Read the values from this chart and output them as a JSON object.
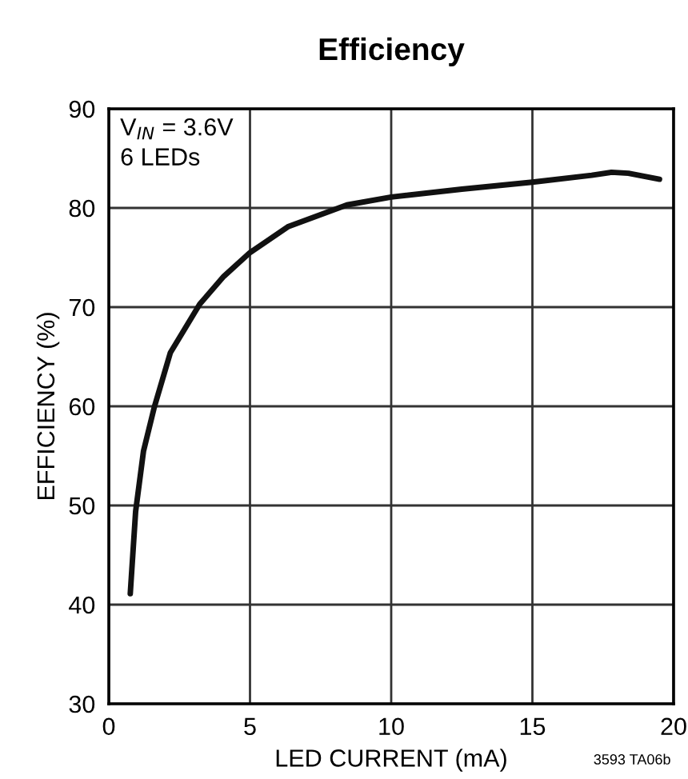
{
  "chart_data": {
    "type": "line",
    "title": "Efficiency",
    "xlabel": "LED CURRENT (mA)",
    "ylabel": "EFFICIENCY (%)",
    "series": [
      {
        "color": "#111111",
        "x": [
          0.76,
          0.95,
          1.23,
          1.61,
          2.18,
          3.22,
          4.07,
          5.0,
          6.34,
          8.43,
          10,
          12.5,
          15,
          17.1,
          17.8,
          18.4,
          19.5
        ],
        "values": [
          41.1,
          49.4,
          55.5,
          59.9,
          65.4,
          70.3,
          73.1,
          75.5,
          78.1,
          80.3,
          81.1,
          81.9,
          82.6,
          83.3,
          83.6,
          83.5,
          82.9
        ]
      }
    ],
    "xlim": [
      0,
      20
    ],
    "xticks": [
      0,
      5,
      10,
      15,
      20
    ],
    "ylim": [
      30,
      90
    ],
    "yticks": [
      30,
      40,
      50,
      60,
      70,
      80,
      90
    ],
    "grid": true,
    "marker": "none",
    "line_style": "solid",
    "annotations": [
      "V$_{IN}$ = 3.6V\n6 LEDs",
      "3593 TA06b"
    ]
  }
}
